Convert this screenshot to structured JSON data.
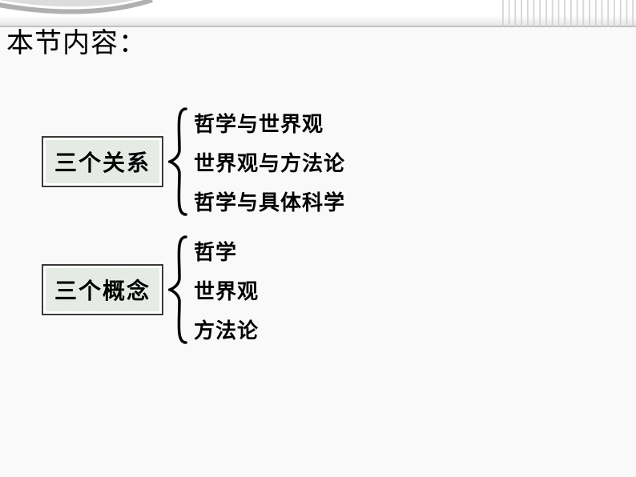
{
  "slide": {
    "section_title": "本节内容：",
    "background_color": "#f9f9f9",
    "decor": {
      "corner_arc_color": "#b0b0b0",
      "corner_inner_color": "#dcdcdc",
      "vlines_color": "#cfcfcf",
      "vlines_count": 22,
      "vlines_region_width": 170
    },
    "groups": [
      {
        "label": "三个关系",
        "items": [
          "哲学与世界观",
          "世界观与方法论",
          "哲学与具体科学"
        ],
        "label_box": {
          "bg_pattern_color1": "#e8ede8",
          "bg_pattern_color2": "#dfe5df",
          "border_color": "#3a3a3a",
          "inner_border_color": "#fefefe",
          "font_size": 28,
          "font_weight": 900,
          "text_color": "#000000"
        },
        "brace": {
          "height": 140,
          "width": 24,
          "stroke": "#000000",
          "stroke_width": 3.5
        },
        "item_style": {
          "font_size": 26,
          "font_weight": 700,
          "text_color": "#000000",
          "line_gap": 12
        }
      },
      {
        "label": "三个概念",
        "items": [
          "哲学",
          "世界观",
          "方法论"
        ],
        "label_box": {
          "bg_pattern_color1": "#e8ede8",
          "bg_pattern_color2": "#dfe5df",
          "border_color": "#3a3a3a",
          "inner_border_color": "#fefefe",
          "font_size": 28,
          "font_weight": 900,
          "text_color": "#000000"
        },
        "brace": {
          "height": 140,
          "width": 24,
          "stroke": "#000000",
          "stroke_width": 3.5
        },
        "item_style": {
          "font_size": 26,
          "font_weight": 700,
          "text_color": "#000000",
          "line_gap": 12
        }
      }
    ]
  }
}
